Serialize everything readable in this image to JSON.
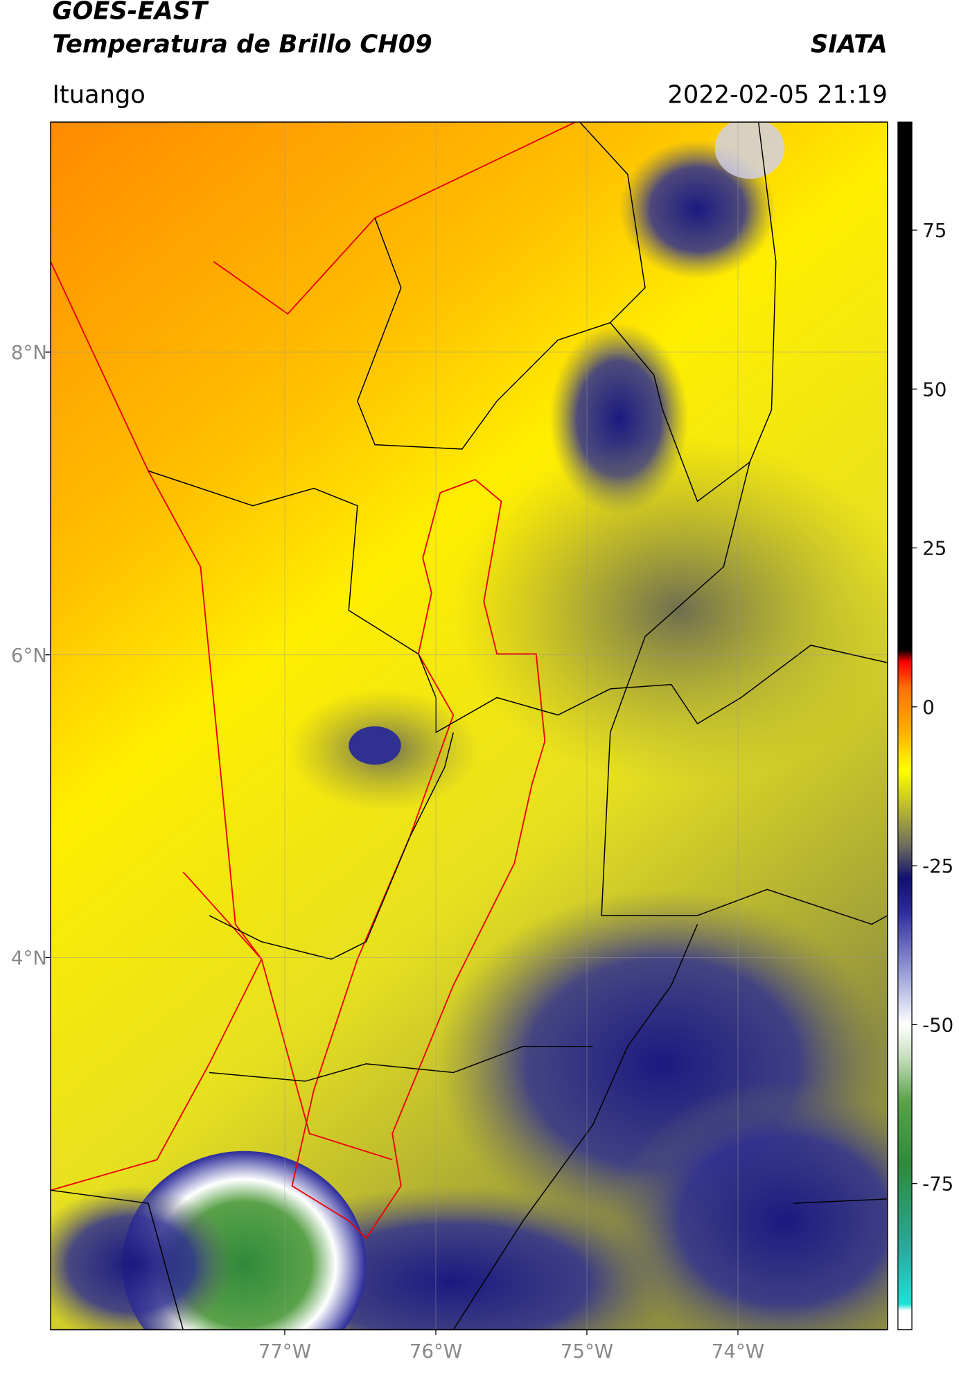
{
  "header": {
    "satellite": "GOES-EAST",
    "product": "Temperatura de Brillo CH09",
    "agency": "SIATA",
    "region": "Ituango",
    "datetime": "2022-02-05 21:19"
  },
  "map": {
    "xlim": [
      -78.55,
      -73.01
    ],
    "ylim": [
      1.54,
      9.52
    ],
    "xticks": [
      {
        "value": -77,
        "label": "77°W"
      },
      {
        "value": -76,
        "label": "76°W"
      },
      {
        "value": -75,
        "label": "75°W"
      },
      {
        "value": -74,
        "label": "74°W"
      }
    ],
    "yticks": [
      {
        "value": 8,
        "label": "8°N"
      },
      {
        "value": 6,
        "label": "6°N"
      },
      {
        "value": 4,
        "label": "4°N"
      }
    ],
    "grid": true
  },
  "colorbar": {
    "clim": [
      -98,
      92
    ],
    "ticks": [
      75,
      50,
      25,
      0,
      -25,
      -50,
      -75
    ],
    "colormap": [
      {
        "value": -98,
        "color": "#ffffff"
      },
      {
        "value": -95,
        "color": "#ffffff"
      },
      {
        "value": -94,
        "color": "#20e0d8"
      },
      {
        "value": -85,
        "color": "#2aa89a"
      },
      {
        "value": -72,
        "color": "#2f8a3a"
      },
      {
        "value": -62,
        "color": "#5aa24a"
      },
      {
        "value": -55,
        "color": "#c8e0c0"
      },
      {
        "value": -50,
        "color": "#ffffff"
      },
      {
        "value": -42,
        "color": "#9aa0d8"
      },
      {
        "value": -32,
        "color": "#2a2a9a"
      },
      {
        "value": -27,
        "color": "#101070"
      },
      {
        "value": -22,
        "color": "#6a6a60"
      },
      {
        "value": -16,
        "color": "#b8b830"
      },
      {
        "value": -10,
        "color": "#ffff00"
      },
      {
        "value": -4,
        "color": "#ffb000"
      },
      {
        "value": 3,
        "color": "#ff7000"
      },
      {
        "value": 7,
        "color": "#ff0000"
      },
      {
        "value": 9,
        "color": "#000000"
      },
      {
        "value": 92,
        "color": "#000000"
      }
    ]
  }
}
